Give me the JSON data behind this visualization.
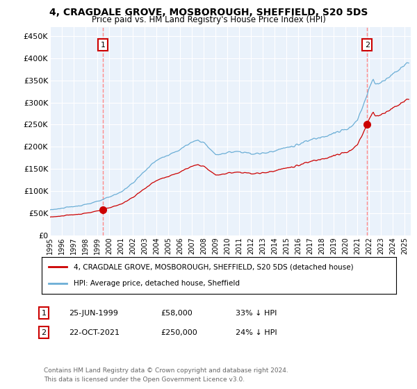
{
  "title": "4, CRAGDALE GROVE, MOSBOROUGH, SHEFFIELD, S20 5DS",
  "subtitle": "Price paid vs. HM Land Registry's House Price Index (HPI)",
  "title_fontsize": 10,
  "subtitle_fontsize": 8.5,
  "ylim": [
    0,
    470000
  ],
  "yticks": [
    0,
    50000,
    100000,
    150000,
    200000,
    250000,
    300000,
    350000,
    400000,
    450000
  ],
  "ytick_labels": [
    "£0",
    "£50K",
    "£100K",
    "£150K",
    "£200K",
    "£250K",
    "£300K",
    "£350K",
    "£400K",
    "£450K"
  ],
  "sale1_price": 58000,
  "sale1_x": 1999.48,
  "sale2_price": 250000,
  "sale2_x": 2021.81,
  "hpi_color": "#6BAED6",
  "price_color": "#CC0000",
  "vline_color": "#FF8888",
  "background_color": "#FFFFFF",
  "plot_bg_color": "#EAF2FB",
  "grid_color": "#FFFFFF",
  "legend_label_red": "4, CRAGDALE GROVE, MOSBOROUGH, SHEFFIELD, S20 5DS (detached house)",
  "legend_label_blue": "HPI: Average price, detached house, Sheffield",
  "footer": "Contains HM Land Registry data © Crown copyright and database right 2024.\nThis data is licensed under the Open Government Licence v3.0.",
  "xmin": 1995.0,
  "xmax": 2025.5
}
